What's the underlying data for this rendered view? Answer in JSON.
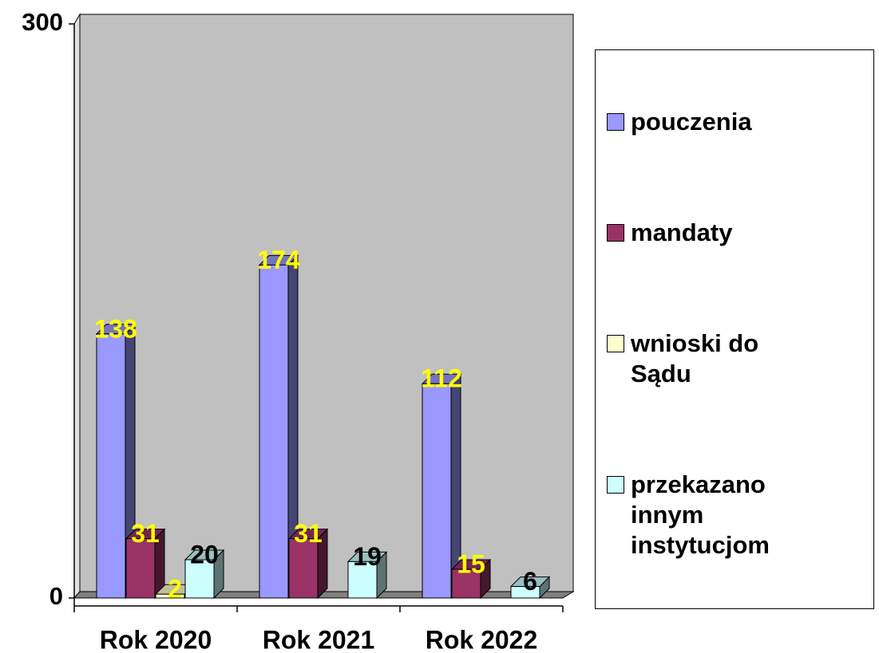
{
  "chart_data": {
    "type": "bar3d",
    "categories": [
      "Rok 2020",
      "Rok 2021",
      "Rok 2022"
    ],
    "series": [
      {
        "name": "pouczenia",
        "color": "#9999ff",
        "label_color": "#ffff00",
        "values": [
          138,
          174,
          112
        ]
      },
      {
        "name": "mandaty",
        "color": "#993366",
        "label_color": "#ffff00",
        "values": [
          31,
          31,
          15
        ]
      },
      {
        "name": "wnioski do Sądu",
        "color": "#ffffcc",
        "label_color": "#ffff00",
        "values": [
          2,
          null,
          null
        ]
      },
      {
        "name": "przekazano innym instytucjom",
        "color": "#ccffff",
        "label_color": "#000000",
        "values": [
          20,
          19,
          6
        ]
      }
    ],
    "ylim": [
      0,
      300
    ],
    "yticks": [
      0,
      300
    ],
    "wall_color": "#c0c0c0",
    "floor_color": "#808080",
    "legend": "right"
  }
}
